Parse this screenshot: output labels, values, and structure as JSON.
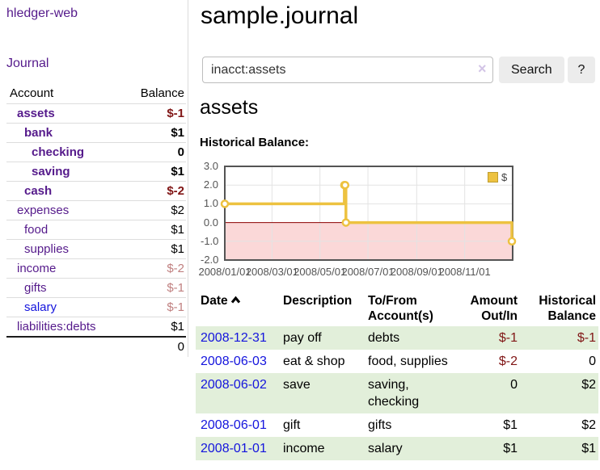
{
  "sidebar": {
    "app_title": "hledger-web",
    "nav": {
      "journal": "Journal"
    },
    "accounts_table": {
      "headers": {
        "account": "Account",
        "balance": "Balance"
      },
      "rows": [
        {
          "account": "assets",
          "balance": "$-1"
        },
        {
          "account": "bank",
          "balance": "$1"
        },
        {
          "account": "checking",
          "balance": "0"
        },
        {
          "account": "saving",
          "balance": "$1"
        },
        {
          "account": "cash",
          "balance": "$-2"
        },
        {
          "account": "expenses",
          "balance": "$2"
        },
        {
          "account": "food",
          "balance": "$1"
        },
        {
          "account": "supplies",
          "balance": "$1"
        },
        {
          "account": "income",
          "balance": "$-2"
        },
        {
          "account": "gifts",
          "balance": "$-1"
        },
        {
          "account": "salary",
          "balance": "$-1"
        },
        {
          "account": "liabilities:debts",
          "balance": "$1"
        }
      ],
      "total": "0"
    }
  },
  "header": {
    "title": "sample.journal"
  },
  "search": {
    "value": "inacct:assets",
    "clear_icon": "×",
    "search_button": "Search",
    "help_button": "?"
  },
  "account_page": {
    "heading": "assets",
    "chart_label": "Historical Balance:"
  },
  "chart_data": {
    "type": "line",
    "step": true,
    "series": [
      {
        "name": "$",
        "color": "#edc240",
        "points": [
          [
            "2008-01-01",
            1
          ],
          [
            "2008-06-01",
            2
          ],
          [
            "2008-06-02",
            2
          ],
          [
            "2008-06-03",
            0
          ],
          [
            "2008-12-31",
            -1
          ]
        ]
      }
    ],
    "x_range": [
      "2008-01-01",
      "2009-01-01"
    ],
    "y_range": [
      -2,
      3
    ],
    "y_ticks": [
      3.0,
      2.0,
      1.0,
      0.0,
      -1.0,
      -2.0
    ],
    "x_ticks": [
      {
        "date": "2008-01-01",
        "label": "2008/01/01"
      },
      {
        "date": "2008-03-01",
        "label": "2008/03/01"
      },
      {
        "date": "2008-05-01",
        "label": "2008/05/01"
      },
      {
        "date": "2008-07-01",
        "label": "2008/07/01"
      },
      {
        "date": "2008-09-01",
        "label": "2008/09/01"
      },
      {
        "date": "2008-11-01",
        "label": "2008/11/01"
      }
    ],
    "legend": [
      "$"
    ],
    "legend_position": "top-right",
    "grid_on": true,
    "grid_color": "#e3e3e3",
    "border_color": "#545454",
    "zero_line_color": "#8b0000",
    "negative_region_color": "#fbd8d8"
  },
  "register_table": {
    "headers": {
      "date": "Date",
      "description": "Description",
      "accounts": "To/From Account(s)",
      "amount": "Amount Out/In",
      "balance": "Historical Balance"
    },
    "rows": [
      {
        "date": "2008-12-31",
        "description": "pay off",
        "accounts": "debts",
        "amount": "$-1",
        "balance": "$-1"
      },
      {
        "date": "2008-06-03",
        "description": "eat & shop",
        "accounts": "food, supplies",
        "amount": "$-2",
        "balance": "0"
      },
      {
        "date": "2008-06-02",
        "description": "save",
        "accounts": "saving, checking",
        "amount": "0",
        "balance": "$2"
      },
      {
        "date": "2008-06-01",
        "description": "gift",
        "accounts": "gifts",
        "amount": "$1",
        "balance": "$2"
      },
      {
        "date": "2008-01-01",
        "description": "income",
        "accounts": "salary",
        "amount": "$1",
        "balance": "$1"
      }
    ]
  },
  "colors": {
    "link_purple": "#551a8b",
    "link_blue": "#1414dd",
    "negative_dark_red": "#801515",
    "negative_faded_red": "#c08080",
    "row_green": "#e2efda",
    "series_gold": "#edc240"
  }
}
